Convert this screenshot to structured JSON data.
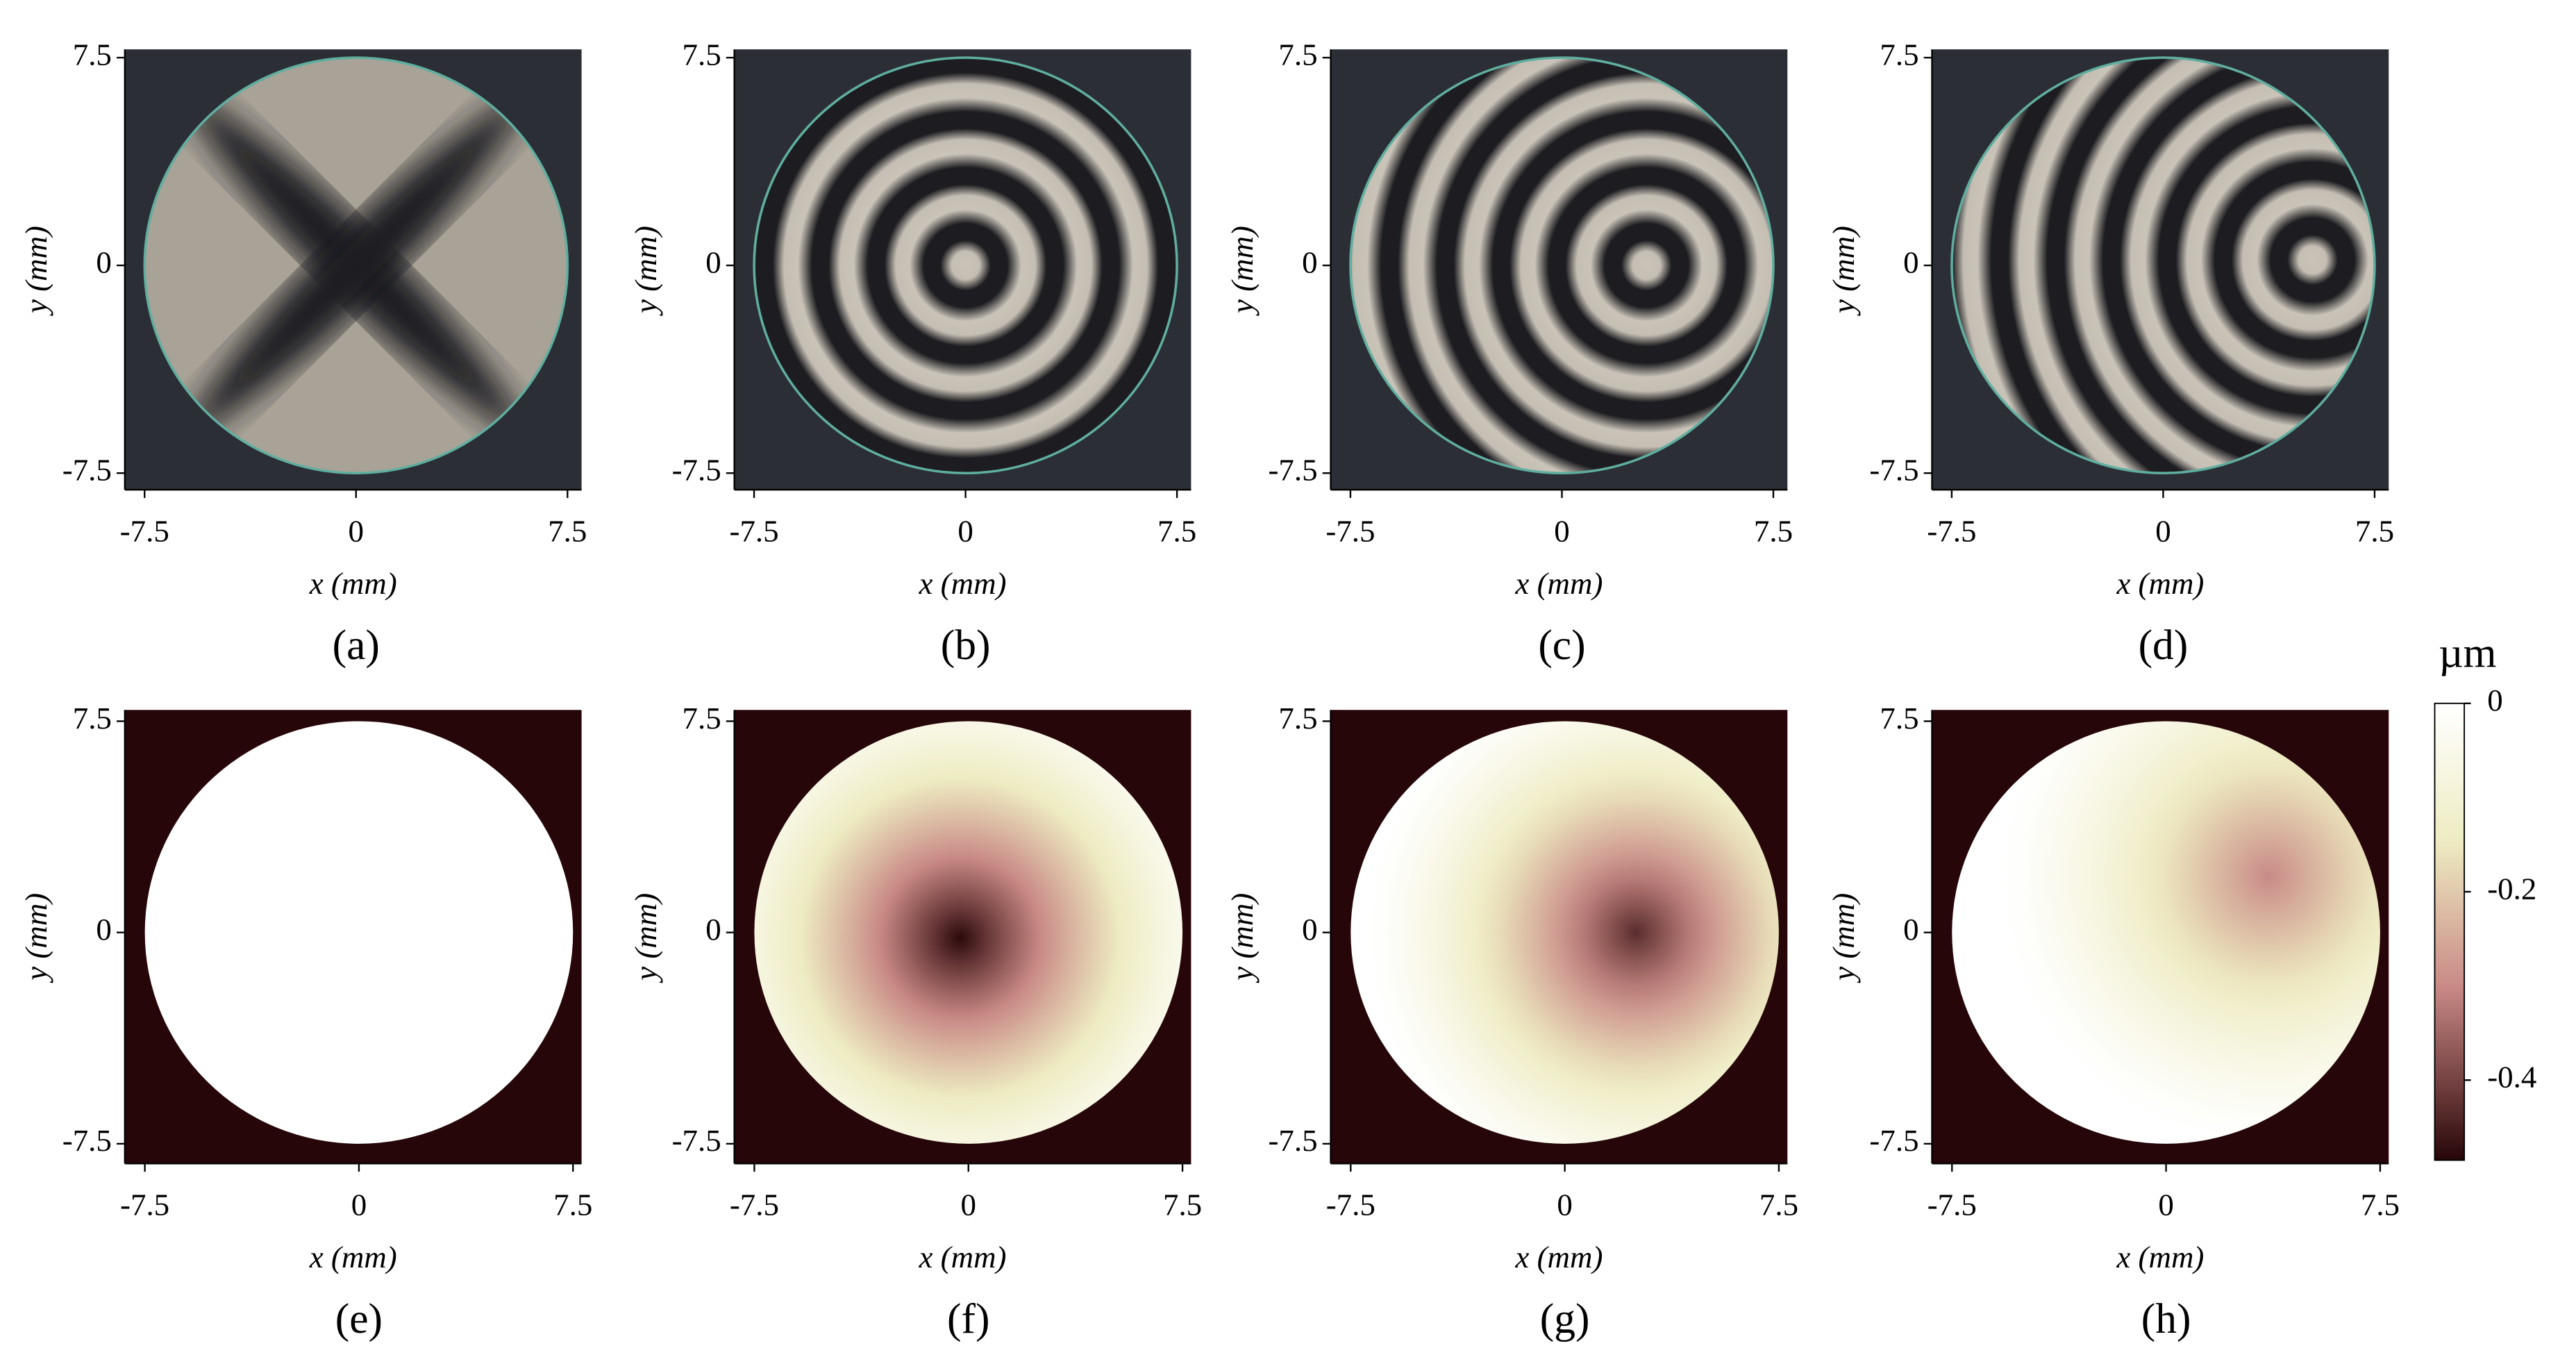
{
  "chart_data": [
    {
      "type": "fringe",
      "label": "(a)",
      "xlabel": "x (mm)",
      "ylabel": "y (mm)",
      "xlim": [
        -8.2,
        8.0
      ],
      "ylim": [
        -8.1,
        7.8
      ],
      "xticks": [
        -7.5,
        0,
        7.5
      ],
      "yticks": [
        -7.5,
        0,
        7.5
      ],
      "aperture_radius": 7.5,
      "ring_center": null
    },
    {
      "type": "fringe",
      "label": "(b)",
      "xlabel": "x (mm)",
      "ylabel": "y (mm)",
      "xlim": [
        -8.2,
        8.0
      ],
      "ylim": [
        -8.1,
        7.8
      ],
      "xticks": [
        -7.5,
        0,
        7.5
      ],
      "yticks": [
        -7.5,
        0,
        7.5
      ],
      "aperture_radius": 7.5,
      "ring_center": [
        0,
        0
      ]
    },
    {
      "type": "fringe",
      "label": "(c)",
      "xlabel": "x (mm)",
      "ylabel": "y (mm)",
      "xlim": [
        -8.2,
        8.0
      ],
      "ylim": [
        -8.1,
        7.8
      ],
      "xticks": [
        -7.5,
        0,
        7.5
      ],
      "yticks": [
        -7.5,
        0,
        7.5
      ],
      "aperture_radius": 7.5,
      "ring_center": [
        3,
        0
      ]
    },
    {
      "type": "fringe",
      "label": "(d)",
      "xlabel": "x (mm)",
      "ylabel": "y (mm)",
      "xlim": [
        -8.2,
        8.0
      ],
      "ylim": [
        -8.1,
        7.8
      ],
      "xticks": [
        -7.5,
        0,
        7.5
      ],
      "yticks": [
        -7.5,
        0,
        7.5
      ],
      "aperture_radius": 7.5,
      "ring_center": [
        5.3,
        0.2
      ]
    },
    {
      "type": "heatmap",
      "label": "(e)",
      "xlabel": "x (mm)",
      "ylabel": "y (mm)",
      "xlim": [
        -8.2,
        7.8
      ],
      "ylim": [
        -8.2,
        7.9
      ],
      "xticks": [
        -7.5,
        0,
        7.5
      ],
      "yticks": [
        -7.5,
        0,
        7.5
      ],
      "aperture_radius": 7.5,
      "center": [
        0,
        0
      ],
      "min": 0
    },
    {
      "type": "heatmap",
      "label": "(f)",
      "xlabel": "x (mm)",
      "ylabel": "y (mm)",
      "xlim": [
        -8.2,
        7.8
      ],
      "ylim": [
        -8.2,
        7.9
      ],
      "xticks": [
        -7.5,
        0,
        7.5
      ],
      "yticks": [
        -7.5,
        0,
        7.5
      ],
      "aperture_radius": 7.5,
      "center": [
        -0.3,
        -0.2
      ],
      "min": -0.48
    },
    {
      "type": "heatmap",
      "label": "(g)",
      "xlabel": "x (mm)",
      "ylabel": "y (mm)",
      "xlim": [
        -8.2,
        7.8
      ],
      "ylim": [
        -8.2,
        7.9
      ],
      "xticks": [
        -7.5,
        0,
        7.5
      ],
      "yticks": [
        -7.5,
        0,
        7.5
      ],
      "aperture_radius": 7.5,
      "center": [
        2.5,
        0
      ],
      "min": -0.43
    },
    {
      "type": "heatmap",
      "label": "(h)",
      "xlabel": "x (mm)",
      "ylabel": "y (mm)",
      "xlim": [
        -8.2,
        7.8
      ],
      "ylim": [
        -8.2,
        7.9
      ],
      "xticks": [
        -7.5,
        0,
        7.5
      ],
      "yticks": [
        -7.5,
        0,
        7.5
      ],
      "aperture_radius": 7.5,
      "center": [
        3.6,
        2.0
      ],
      "min": -0.3
    }
  ],
  "colorbar": {
    "label": "µm",
    "lim": [
      -0.485,
      0
    ],
    "ticks": [
      0,
      -0.2,
      -0.4
    ]
  }
}
